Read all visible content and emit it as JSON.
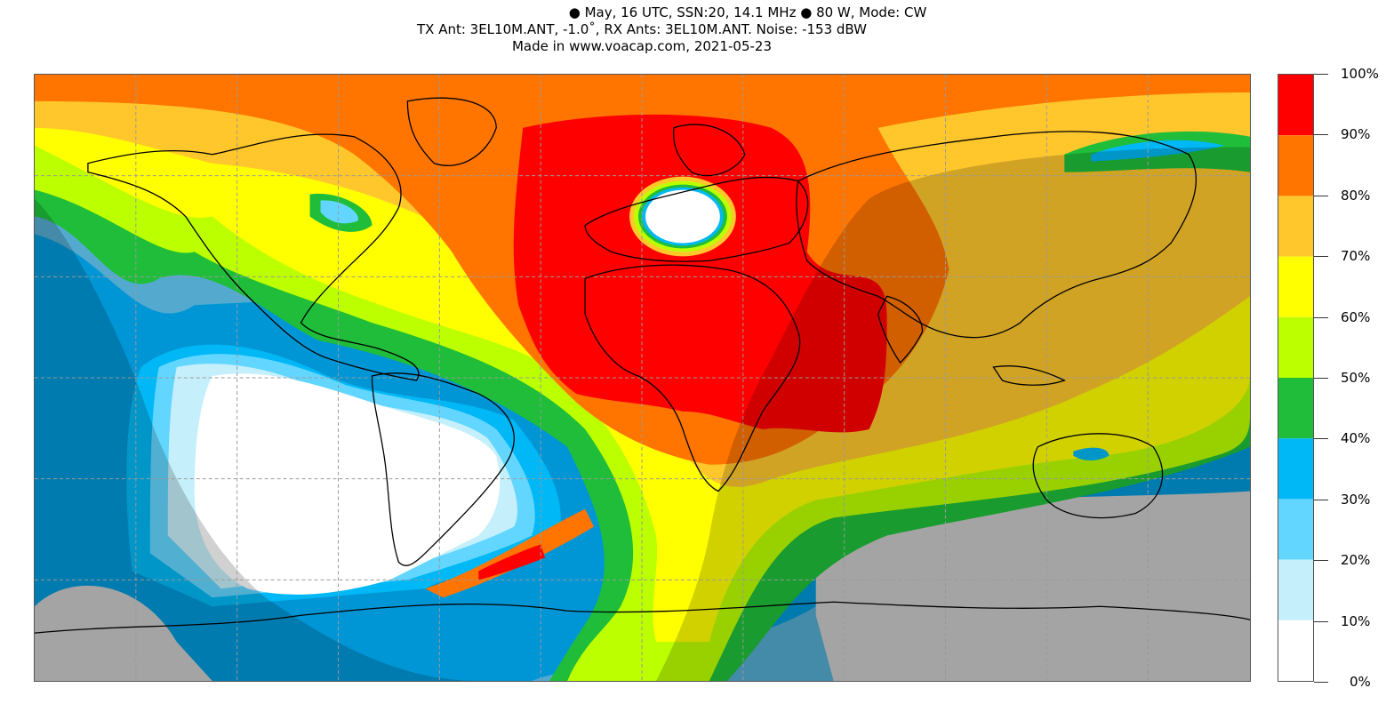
{
  "header": {
    "line1_part1": "May, 16 UTC, SSN:20, 14.1 MHz",
    "line1_part2": "80 W, Mode: CW",
    "line2": "TX Ant: 3EL10M.ANT, -1.0˚, RX Ants: 3EL10M.ANT. Noise: -153 dBW",
    "line3": "Made in www.voacap.com, 2021-05-23"
  },
  "colorbar": {
    "labels": [
      "100%",
      "90%",
      "80%",
      "70%",
      "60%",
      "50%",
      "40%",
      "30%",
      "20%",
      "10%",
      "0%"
    ],
    "colors": [
      "#ff0000",
      "#ff7500",
      "#ffc72c",
      "#ffff00",
      "#bbff00",
      "#1fbd3a",
      "#00b8f5",
      "#63d6ff",
      "#c5f0fb",
      "#ffffff"
    ]
  },
  "map": {
    "projection": "equirectangular, world",
    "grid": "dashed",
    "night_overlay": "grey terminator shading",
    "no_coverage_color": "#c8c9c8"
  }
}
